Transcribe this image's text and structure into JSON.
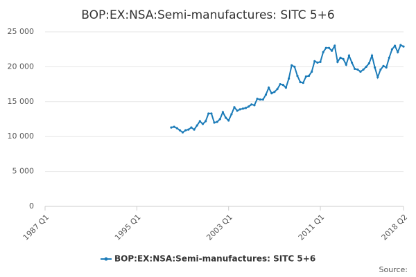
{
  "chart_data": {
    "type": "line",
    "title": "BOP:EX:NSA:Semi-manufactures: SITC 5+6",
    "source": "Source:",
    "categories": [
      "1987 Q1",
      null,
      null,
      null,
      null,
      null,
      null,
      null,
      null,
      null,
      null,
      null,
      null,
      null,
      null,
      null,
      null,
      null,
      null,
      null,
      null,
      null,
      null,
      null,
      null,
      null,
      null,
      null,
      null,
      null,
      null,
      null,
      "1995 Q1",
      null,
      null,
      null,
      null,
      null,
      null,
      null,
      null,
      null,
      null,
      null,
      null,
      null,
      null,
      null,
      null,
      null,
      null,
      null,
      null,
      null,
      null,
      null,
      null,
      null,
      null,
      null,
      null,
      null,
      null,
      null,
      "2003 Q1",
      null,
      null,
      null,
      null,
      null,
      null,
      null,
      null,
      null,
      null,
      null,
      null,
      null,
      null,
      null,
      null,
      null,
      null,
      null,
      null,
      null,
      null,
      null,
      null,
      null,
      null,
      null,
      null,
      null,
      null,
      null,
      "2011 Q1",
      null,
      null,
      null,
      null,
      null,
      null,
      null,
      null,
      null,
      null,
      null,
      null,
      null,
      null,
      null,
      null,
      null,
      null,
      null,
      null,
      null,
      null,
      null,
      null,
      null,
      null,
      null,
      null,
      "2018 Q2"
    ],
    "series": [
      {
        "name": "BOP:EX:NSA:Semi-manufactures: SITC 5+6",
        "color": "#1b7bb8",
        "values": [
          null,
          null,
          null,
          null,
          null,
          null,
          null,
          null,
          null,
          null,
          null,
          null,
          null,
          null,
          null,
          null,
          null,
          null,
          null,
          null,
          null,
          null,
          null,
          null,
          null,
          null,
          null,
          null,
          null,
          null,
          null,
          null,
          null,
          null,
          null,
          null,
          null,
          null,
          null,
          null,
          null,
          null,
          null,
          null,
          11300,
          11400,
          11200,
          10900,
          10600,
          10900,
          11000,
          11300,
          11000,
          11600,
          12200,
          11800,
          12200,
          13300,
          13300,
          12000,
          12100,
          12500,
          13500,
          12700,
          12300,
          13200,
          14200,
          13700,
          13900,
          14000,
          14100,
          14300,
          14600,
          14500,
          15400,
          15300,
          15300,
          16000,
          17000,
          16200,
          16400,
          16800,
          17500,
          17400,
          17000,
          18300,
          20200,
          20000,
          18700,
          17800,
          17700,
          18600,
          18700,
          19300,
          20800,
          20600,
          20700,
          22100,
          22700,
          22700,
          22300,
          23000,
          20700,
          21300,
          21100,
          20300,
          21600,
          20600,
          19700,
          19600,
          19300,
          19600,
          20000,
          20500,
          21600,
          19900,
          18500,
          19600,
          20100,
          19900,
          21300,
          22500,
          23000,
          22100,
          23100,
          22900
        ]
      }
    ],
    "ylim": [
      0,
      25000
    ],
    "yticks": [
      0,
      {
        "value": 5000,
        "label": "5 000"
      },
      {
        "value": 10000,
        "label": "10 000"
      },
      {
        "value": 15000,
        "label": "15 000"
      },
      {
        "value": 20000,
        "label": "20 000"
      },
      {
        "value": 25000,
        "label": "25 000"
      }
    ],
    "grid": true
  }
}
